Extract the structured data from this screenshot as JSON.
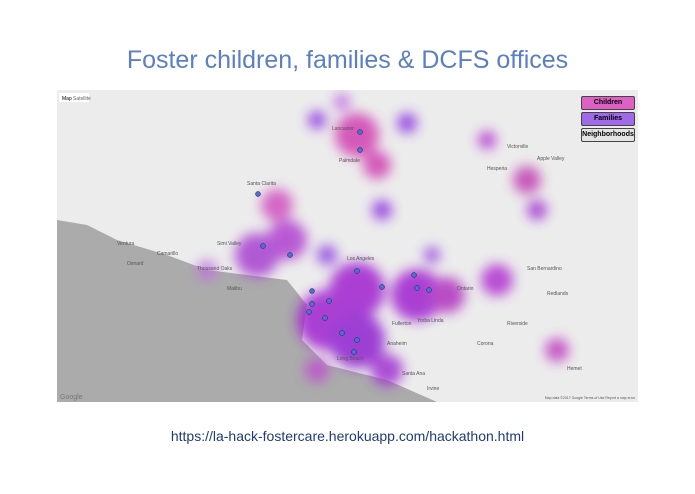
{
  "header": {
    "title": "Foster children, families & DCFS offices"
  },
  "map": {
    "tabs": [
      "Map",
      "Satellite"
    ],
    "buttons": [
      "Children",
      "Families",
      "Neighborhoods"
    ],
    "places": [
      {
        "label": "Lancaster"
      },
      {
        "label": "Palmdale"
      },
      {
        "label": "Victorville"
      },
      {
        "label": "Hesperia"
      },
      {
        "label": "Apple Valley"
      },
      {
        "label": "Santa Clarita"
      },
      {
        "label": "Simi Valley"
      },
      {
        "label": "Thousand Oaks"
      },
      {
        "label": "Ventura"
      },
      {
        "label": "Oxnard"
      },
      {
        "label": "Camarillo"
      },
      {
        "label": "Malibu"
      },
      {
        "label": "Los Angeles"
      },
      {
        "label": "Long Beach"
      },
      {
        "label": "Santa Ana"
      },
      {
        "label": "Irvine"
      },
      {
        "label": "Anaheim"
      },
      {
        "label": "Fullerton"
      },
      {
        "label": "Riverside"
      },
      {
        "label": "San Bernardino"
      },
      {
        "label": "Redlands"
      },
      {
        "label": "Ontario"
      },
      {
        "label": "Corona"
      },
      {
        "label": "Hemet"
      },
      {
        "label": "Yorba Linda"
      }
    ],
    "attribution": "Google",
    "footer": "Map data ©2017 Google  Terms of Use  Report a map error"
  },
  "footer": {
    "url": "https://la-hack-fostercare.herokuapp.com/hackathon.html"
  }
}
